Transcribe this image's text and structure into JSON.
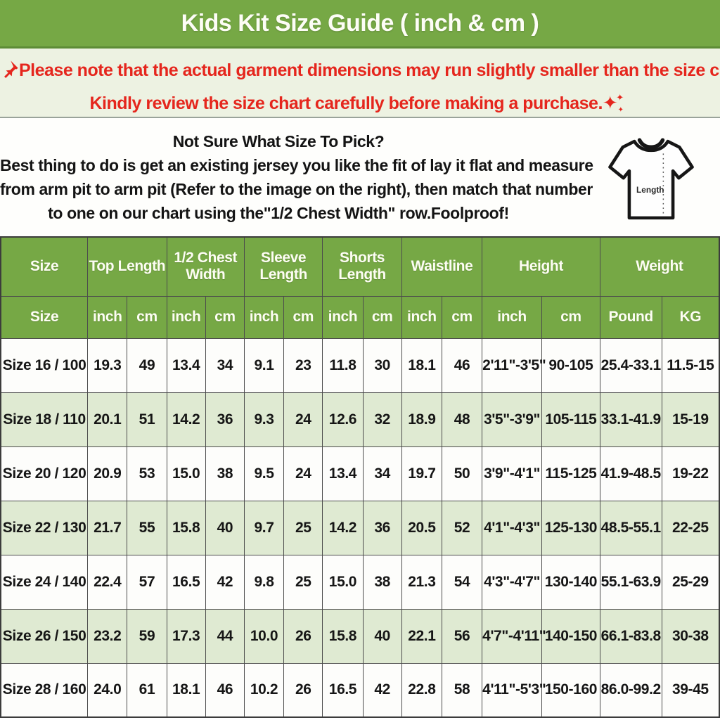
{
  "title_bar": {
    "title": "Kids Kit Size Guide ( inch & cm )",
    "bg_color": "#76a845",
    "text_color": "#fdfdf6"
  },
  "notice": {
    "text_color": "#e5261d",
    "bg_color": "#edf2e2",
    "pushpin_icon": "pushpin-icon",
    "ruler_icon": "ruler-icon",
    "line1": "Please note that the actual garment dimensions may run slightly smaller than the size chart",
    "line1_end": " .",
    "line2": "Kindly review the size chart carefully before making a purchase.",
    "sparkle_glyph": "✦"
  },
  "instructions": {
    "heading": "Not Sure What Size To Pick?",
    "line1": "Best thing to do is get an existing jersey you like the fit of lay it flat and measure",
    "line2": "from arm pit to arm pit (Refer to the image on the right), then match that number",
    "line3": "to one on our chart using the\"1/2 Chest Width\" row.Foolproof!",
    "tshirt_label": "Length"
  },
  "table": {
    "header_bg": "#76a845",
    "alt_row_bg": "#dfead2",
    "groups": [
      {
        "label": "Size",
        "span": 1
      },
      {
        "label": "Top Length",
        "span": 2
      },
      {
        "label": "1/2 Chest Width",
        "span": 2
      },
      {
        "label": "Sleeve Length",
        "span": 2
      },
      {
        "label": "Shorts Length",
        "span": 2
      },
      {
        "label": "Waistline",
        "span": 2
      },
      {
        "label": "Height",
        "span": 2
      },
      {
        "label": "Weight",
        "span": 2
      }
    ],
    "subheaders": [
      "Size",
      "inch",
      "cm",
      "inch",
      "cm",
      "inch",
      "cm",
      "inch",
      "cm",
      "inch",
      "cm",
      "inch",
      "cm",
      "Pound",
      "KG"
    ],
    "rows": [
      [
        "Size 16 / 100",
        "19.3",
        "49",
        "13.4",
        "34",
        "9.1",
        "23",
        "11.8",
        "30",
        "18.1",
        "46",
        "2'11\"-3'5\"",
        "90-105",
        "25.4-33.1",
        "11.5-15"
      ],
      [
        "Size 18 / 110",
        "20.1",
        "51",
        "14.2",
        "36",
        "9.3",
        "24",
        "12.6",
        "32",
        "18.9",
        "48",
        "3'5\"-3'9\"",
        "105-115",
        "33.1-41.9",
        "15-19"
      ],
      [
        "Size 20 / 120",
        "20.9",
        "53",
        "15.0",
        "38",
        "9.5",
        "24",
        "13.4",
        "34",
        "19.7",
        "50",
        "3'9\"-4'1\"",
        "115-125",
        "41.9-48.5",
        "19-22"
      ],
      [
        "Size 22 / 130",
        "21.7",
        "55",
        "15.8",
        "40",
        "9.7",
        "25",
        "14.2",
        "36",
        "20.5",
        "52",
        "4'1\"-4'3\"",
        "125-130",
        "48.5-55.1",
        "22-25"
      ],
      [
        "Size 24 / 140",
        "22.4",
        "57",
        "16.5",
        "42",
        "9.8",
        "25",
        "15.0",
        "38",
        "21.3",
        "54",
        "4'3\"-4'7\"",
        "130-140",
        "55.1-63.9",
        "25-29"
      ],
      [
        "Size 26 / 150",
        "23.2",
        "59",
        "17.3",
        "44",
        "10.0",
        "26",
        "15.8",
        "40",
        "22.1",
        "56",
        "4'7\"-4'11\"",
        "140-150",
        "66.1-83.8",
        "30-38"
      ],
      [
        "Size 28 / 160",
        "24.0",
        "61",
        "18.1",
        "46",
        "10.2",
        "26",
        "16.5",
        "42",
        "22.8",
        "58",
        "4'11\"-5'3\"",
        "150-160",
        "86.0-99.2",
        "39-45"
      ]
    ]
  }
}
